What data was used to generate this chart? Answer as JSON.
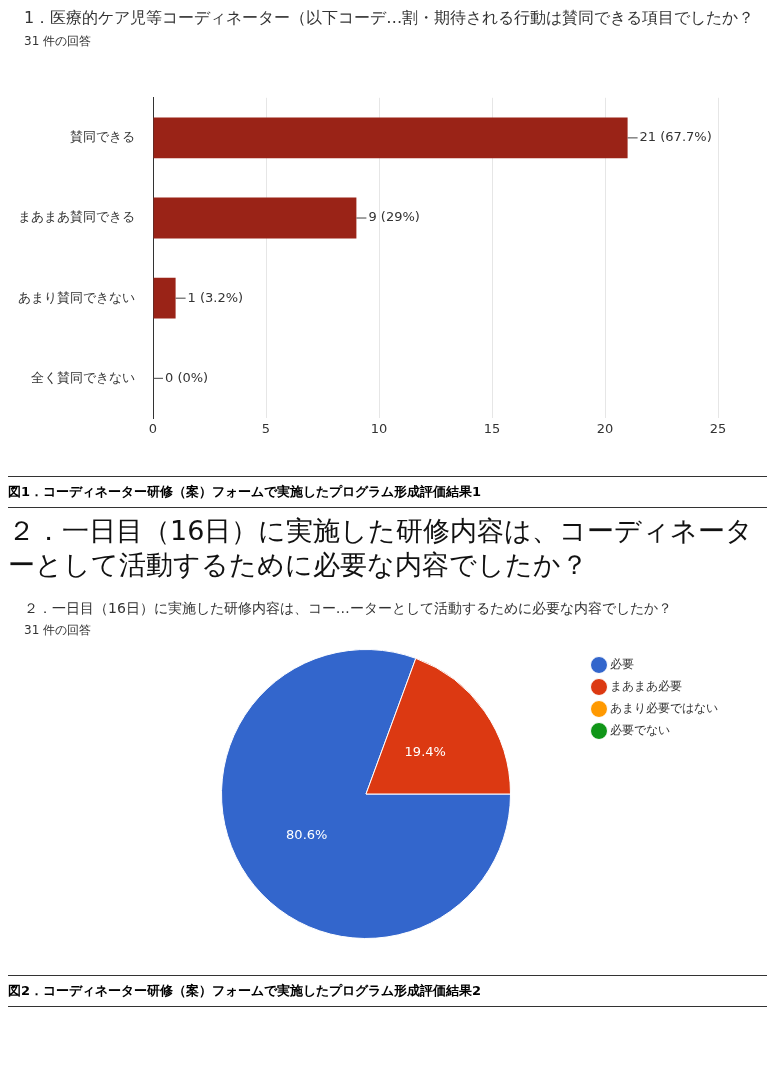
{
  "chart_data": [
    {
      "type": "bar",
      "orientation": "horizontal",
      "title": "1．医療的ケア児等コーディネーター（以下コーデ…割・期待される行動は賛同できる項目でしたか？",
      "subtitle": "31 件の回答",
      "categories": [
        "賛同できる",
        "まあまあ賛同できる",
        "あまり賛同できない",
        "全く賛同できない"
      ],
      "values": [
        21,
        9,
        1,
        0
      ],
      "value_labels": [
        "21 (67.7%)",
        "9 (29%)",
        "1 (3.2%)",
        "0 (0%)"
      ],
      "color": "#9a2317",
      "xlim": [
        0,
        25
      ],
      "xticks": [
        0,
        5,
        10,
        15,
        20,
        25
      ],
      "grid": "x",
      "legend": false,
      "annotations": [
        "図1．コーディネーター研修（案）フォームで実施したプログラム形成評価結果1"
      ]
    },
    {
      "type": "pie",
      "title": "２．一日目（16日）に実施した研修内容は、コー…ーターとして活動するために必要な内容でしたか？",
      "subtitle": "31 件の回答",
      "categories": [
        "必要",
        "まあまあ必要",
        "あまり必要ではない",
        "必要でない"
      ],
      "values": [
        80.6,
        19.4,
        0,
        0
      ],
      "colors": [
        "#3366cc",
        "#dc3912",
        "#ff9900",
        "#109618"
      ],
      "value_labels": [
        "80.6%",
        "19.4%",
        null,
        null
      ],
      "legend": "right",
      "annotations": [
        "２．一日目（16日）に実施した研修内容は、コーディネーターとして活動するために必要な内容でしたか？",
        "図2．コーディネーター研修（案）フォームで実施したプログラム形成評価結果2"
      ]
    }
  ]
}
